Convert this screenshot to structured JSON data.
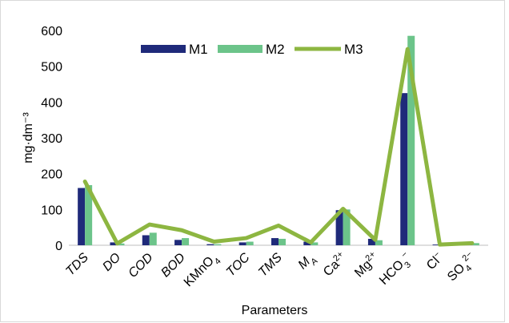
{
  "chart_data": {
    "type": "bar",
    "xlabel": "Parameters",
    "ylabel": "mg·dm⁻³",
    "ylim": [
      0,
      600
    ],
    "yticks": [
      "0",
      "100",
      "200",
      "300",
      "400",
      "500",
      "600"
    ],
    "grid": false,
    "legend_position": "top",
    "categories": [
      "TDS",
      "DO",
      "COD",
      "BOD",
      "KMnO₄",
      "TOC",
      "TMS",
      "M_A",
      "Ca²⁺",
      "Mg²⁺",
      "HCO₃⁻",
      "Cl⁻",
      "SO₄²⁻"
    ],
    "category_labels": [
      {
        "base": "TDS",
        "sub": "",
        "sup": "",
        "italic": true
      },
      {
        "base": "DO",
        "sub": "",
        "sup": "",
        "italic": true
      },
      {
        "base": "COD",
        "sub": "",
        "sup": "",
        "italic": true
      },
      {
        "base": "BOD",
        "sub": "",
        "sup": "",
        "italic": true
      },
      {
        "base": "KMnO",
        "sub": "4",
        "sup": "",
        "italic": false
      },
      {
        "base": "TOC",
        "sub": "",
        "sup": "",
        "italic": true
      },
      {
        "base": "TMS",
        "sub": "",
        "sup": "",
        "italic": true
      },
      {
        "base": "M",
        "sub": "A",
        "sup": "",
        "italic": true
      },
      {
        "base": "Ca",
        "sub": "",
        "sup": "2+",
        "italic": false
      },
      {
        "base": "Mg",
        "sub": "",
        "sup": "2+",
        "italic": false
      },
      {
        "base": "HCO",
        "sub": "3",
        "sup": "−",
        "italic": false
      },
      {
        "base": "Cl",
        "sub": "",
        "sup": "−",
        "italic": false
      },
      {
        "base": "SO",
        "sub": "4",
        "sup": "2−",
        "italic": false
      }
    ],
    "series": [
      {
        "name": "M1",
        "type": "bar",
        "color": "#1f2a7a",
        "values": [
          160,
          8,
          28,
          15,
          3,
          8,
          20,
          10,
          98,
          18,
          425,
          2,
          2
        ]
      },
      {
        "name": "M2",
        "type": "bar",
        "color": "#6cc48a",
        "values": [
          168,
          5,
          35,
          20,
          3,
          10,
          18,
          8,
          100,
          14,
          585,
          2,
          6
        ]
      },
      {
        "name": "M3",
        "type": "line",
        "color": "#8db641",
        "values": [
          178,
          5,
          58,
          42,
          10,
          20,
          55,
          8,
          102,
          15,
          548,
          2,
          6
        ]
      }
    ]
  }
}
